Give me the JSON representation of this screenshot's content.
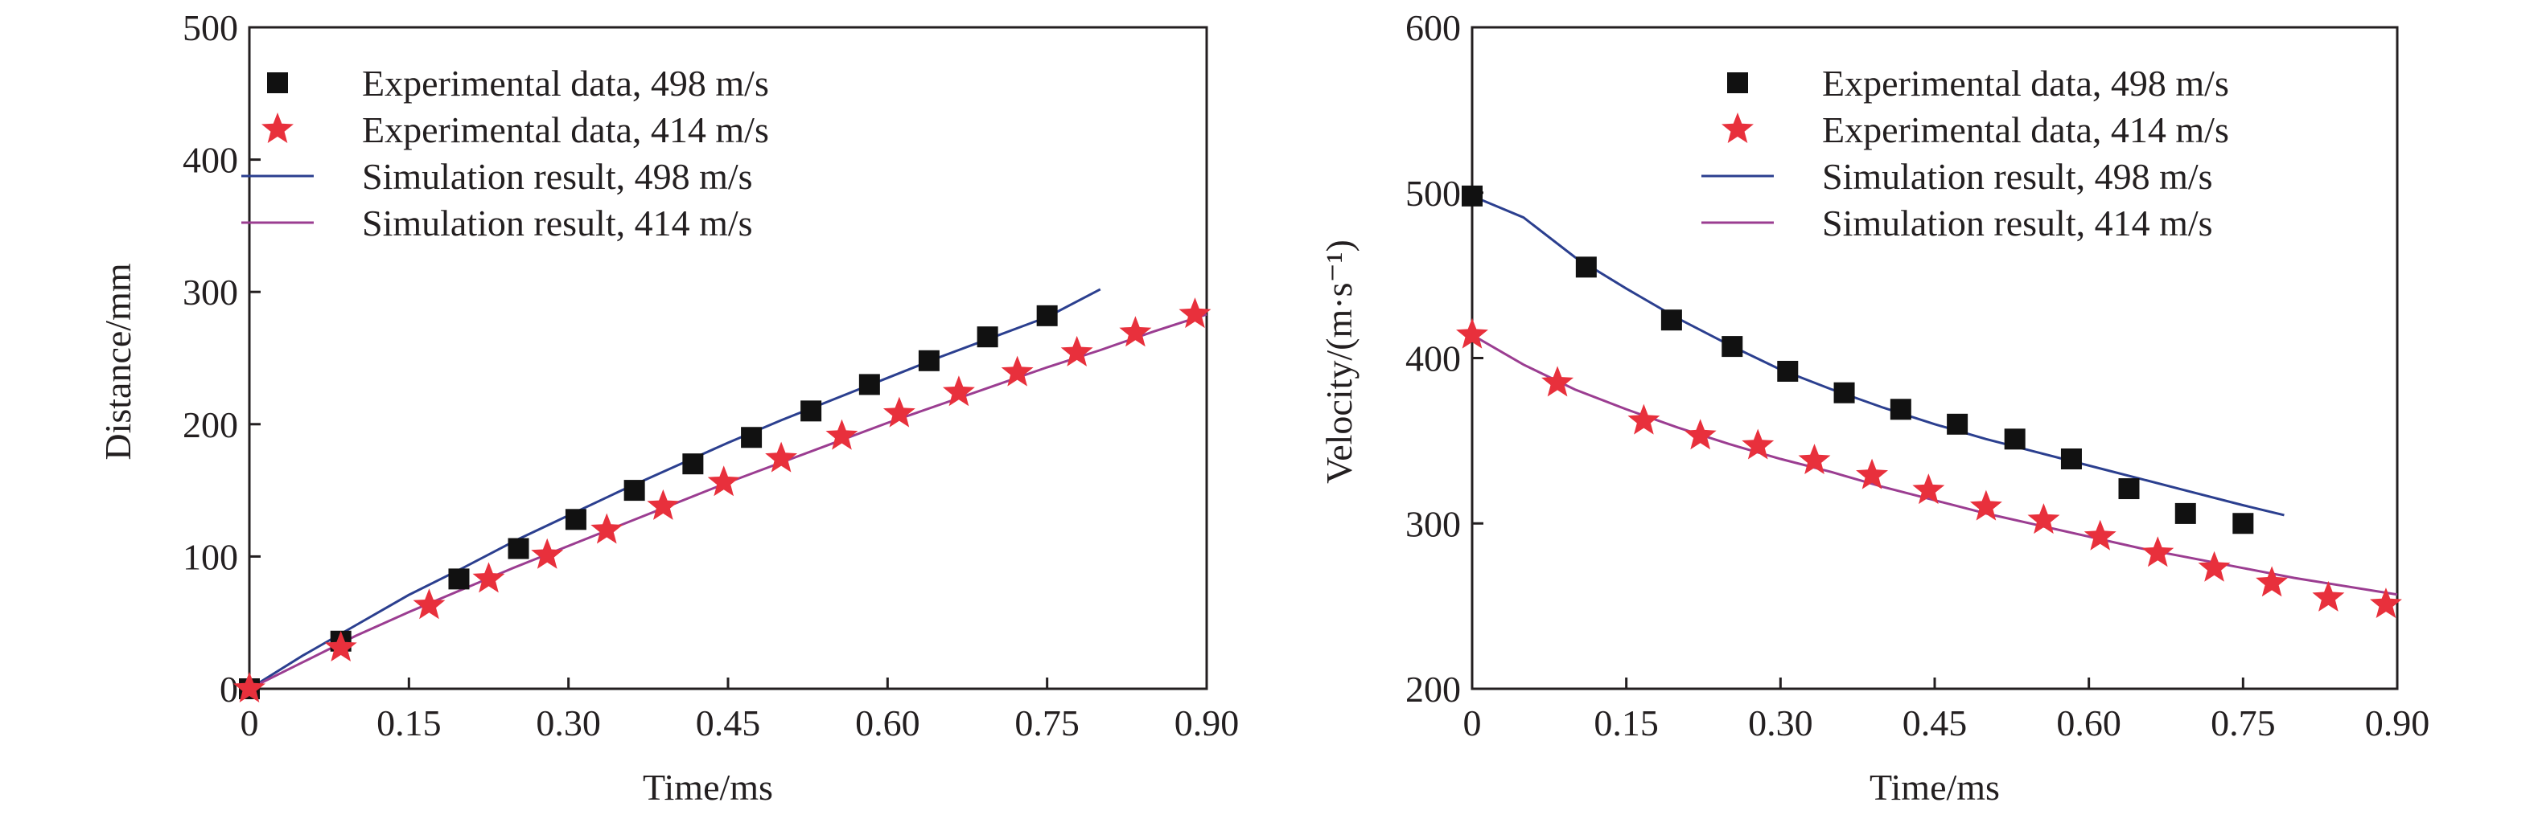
{
  "colors": {
    "series_498": "#2b3f8f",
    "series_414_line": "#9b3d91",
    "star_fill": "#e8303c",
    "square_fill": "#111111",
    "axis": "#231f20",
    "background": "#ffffff"
  },
  "chart_data": [
    {
      "type": "line",
      "xlabel": "Time/ms",
      "ylabel": "Distance/mm",
      "xlim": [
        0,
        0.9
      ],
      "ylim": [
        0,
        500
      ],
      "xticks": [
        0,
        0.15,
        0.3,
        0.45,
        0.6,
        0.75,
        0.9
      ],
      "xtick_labels": [
        "0",
        "0.15",
        "0.30",
        "0.45",
        "0.60",
        "0.75",
        "0.90"
      ],
      "yticks": [
        0,
        100,
        200,
        300,
        400,
        500
      ],
      "ytick_labels": [
        "0",
        "100",
        "200",
        "300",
        "400",
        "500"
      ],
      "grid": false,
      "legend_position": "top-left",
      "series": [
        {
          "name": "Experimental data, 498 m/s",
          "kind": "scatter",
          "marker": "square",
          "x": [
            0,
            0.086,
            0.197,
            0.253,
            0.307,
            0.362,
            0.417,
            0.472,
            0.528,
            0.583,
            0.639,
            0.694,
            0.75
          ],
          "y": [
            0,
            36,
            83,
            106,
            128,
            150,
            170,
            190,
            210,
            230,
            248,
            266,
            282
          ]
        },
        {
          "name": "Experimental data, 414 m/s",
          "kind": "scatter",
          "marker": "star",
          "x": [
            0,
            0.086,
            0.169,
            0.225,
            0.28,
            0.336,
            0.389,
            0.446,
            0.5,
            0.557,
            0.611,
            0.667,
            0.722,
            0.778,
            0.833,
            0.889
          ],
          "y": [
            0,
            31,
            63,
            83,
            101,
            120,
            138,
            156,
            174,
            191,
            208,
            224,
            239,
            254,
            269,
            283
          ]
        },
        {
          "name": "Simulation result, 498 m/s",
          "kind": "line",
          "x": [
            0,
            0.05,
            0.1,
            0.15,
            0.2,
            0.25,
            0.3,
            0.35,
            0.4,
            0.45,
            0.5,
            0.55,
            0.6,
            0.65,
            0.7,
            0.75,
            0.8
          ],
          "y": [
            0,
            25,
            48,
            71,
            91,
            112,
            131,
            150,
            168,
            186,
            203,
            219,
            235,
            251,
            266,
            281,
            302
          ]
        },
        {
          "name": "Simulation result, 414 m/s",
          "kind": "line",
          "x": [
            0,
            0.05,
            0.1,
            0.15,
            0.2,
            0.25,
            0.3,
            0.35,
            0.4,
            0.45,
            0.5,
            0.55,
            0.6,
            0.65,
            0.7,
            0.75,
            0.8,
            0.85,
            0.9
          ],
          "y": [
            0,
            20,
            40,
            58,
            75,
            92,
            108,
            124,
            140,
            156,
            171,
            186,
            201,
            215,
            229,
            243,
            256,
            270,
            283
          ]
        }
      ]
    },
    {
      "type": "line",
      "xlabel": "Time/ms",
      "ylabel": "Velocity/(m·s⁻¹)",
      "xlim": [
        0,
        0.9
      ],
      "ylim": [
        200,
        600
      ],
      "xticks": [
        0,
        0.15,
        0.3,
        0.45,
        0.6,
        0.75,
        0.9
      ],
      "xtick_labels": [
        "0",
        "0.15",
        "0.30",
        "0.45",
        "0.60",
        "0.75",
        "0.90"
      ],
      "yticks": [
        200,
        300,
        400,
        500,
        600
      ],
      "ytick_labels": [
        "200",
        "300",
        "400",
        "500",
        "600"
      ],
      "grid": false,
      "legend_position": "top-right",
      "series": [
        {
          "name": "Experimental data, 498 m/s",
          "kind": "scatter",
          "marker": "square",
          "x": [
            0,
            0.111,
            0.194,
            0.253,
            0.307,
            0.362,
            0.417,
            0.472,
            0.528,
            0.583,
            0.639,
            0.694,
            0.75
          ],
          "y": [
            498,
            455,
            423,
            407,
            392,
            379,
            369,
            360,
            351,
            339,
            321,
            306,
            300
          ]
        },
        {
          "name": "Experimental data, 414 m/s",
          "kind": "scatter",
          "marker": "star",
          "x": [
            0,
            0.083,
            0.167,
            0.222,
            0.278,
            0.333,
            0.389,
            0.444,
            0.5,
            0.556,
            0.611,
            0.667,
            0.722,
            0.778,
            0.833,
            0.889
          ],
          "y": [
            414,
            385,
            362,
            353,
            347,
            338,
            329,
            320,
            310,
            302,
            292,
            282,
            273,
            264,
            255,
            251
          ]
        },
        {
          "name": "Simulation result, 498 m/s",
          "kind": "line",
          "x": [
            0,
            0.05,
            0.1,
            0.15,
            0.2,
            0.25,
            0.3,
            0.35,
            0.4,
            0.45,
            0.5,
            0.55,
            0.6,
            0.65,
            0.7,
            0.75,
            0.79
          ],
          "y": [
            498,
            485,
            461,
            442,
            424,
            408,
            393,
            381,
            370,
            360,
            351,
            343,
            335,
            327,
            319,
            311,
            305
          ]
        },
        {
          "name": "Simulation result, 414 m/s",
          "kind": "line",
          "x": [
            0,
            0.05,
            0.1,
            0.15,
            0.2,
            0.25,
            0.3,
            0.35,
            0.4,
            0.45,
            0.5,
            0.55,
            0.6,
            0.65,
            0.7,
            0.75,
            0.8,
            0.85,
            0.9
          ],
          "y": [
            414,
            396,
            381,
            369,
            358,
            348,
            339,
            331,
            322,
            314,
            306,
            299,
            292,
            285,
            279,
            273,
            267,
            262,
            257
          ]
        }
      ]
    }
  ]
}
